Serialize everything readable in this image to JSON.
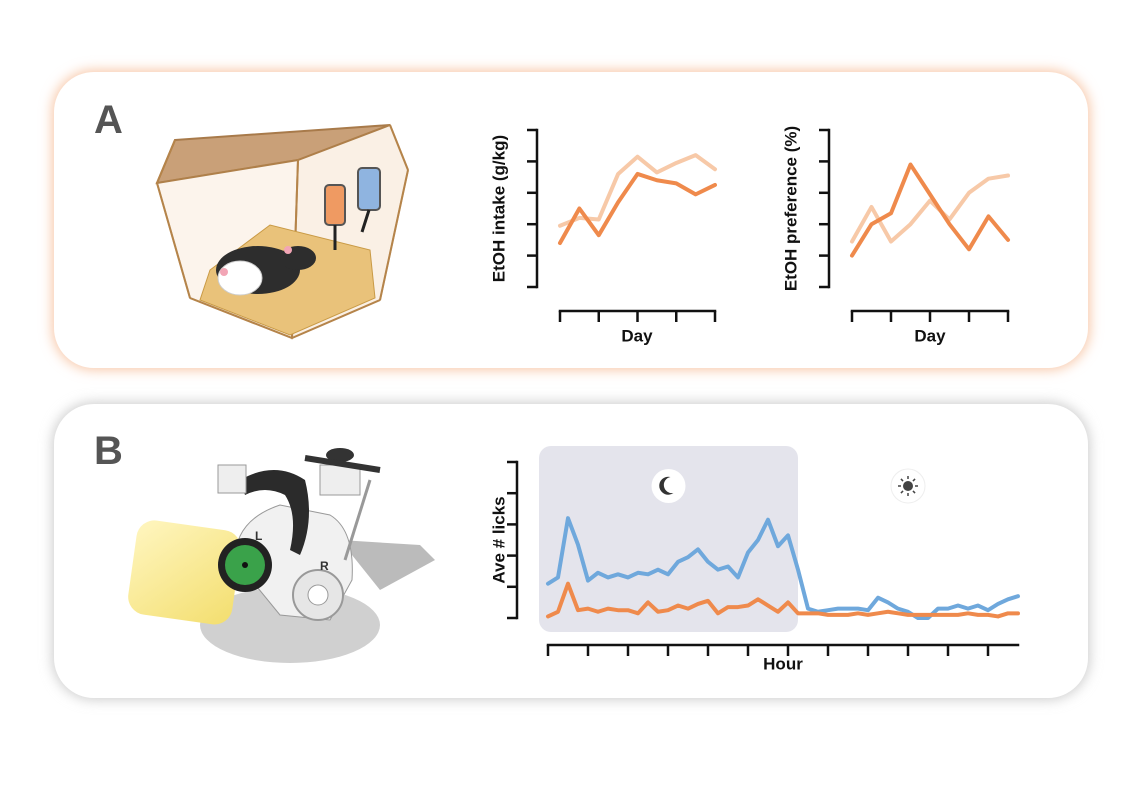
{
  "panels": [
    {
      "label": "A"
    },
    {
      "label": "B"
    }
  ],
  "chart_data": [
    {
      "type": "line",
      "ylabel": "EtOH intake (g/kg)",
      "xlabel": "Day",
      "x": [
        0,
        1,
        2,
        3,
        4,
        5,
        6,
        7,
        8
      ],
      "xlim": [
        0,
        8
      ],
      "xticks": [
        0,
        2,
        4,
        6,
        8
      ],
      "ylim": [
        0,
        5
      ],
      "yticks": [
        0,
        1,
        2,
        3,
        4,
        5
      ],
      "series": [
        {
          "color": "#f7c9a8",
          "values": [
            1.95,
            2.2,
            2.15,
            3.6,
            4.15,
            3.65,
            3.95,
            4.2,
            3.75
          ]
        },
        {
          "color": "#ef8a4c",
          "values": [
            1.4,
            2.5,
            1.65,
            2.7,
            3.6,
            3.4,
            3.3,
            2.95,
            3.25
          ]
        }
      ]
    },
    {
      "type": "line",
      "ylabel": "EtOH preference (%)",
      "xlabel": "Day",
      "x": [
        0,
        1,
        2,
        3,
        4,
        5,
        6,
        7,
        8
      ],
      "xlim": [
        0,
        8
      ],
      "xticks": [
        0,
        2,
        4,
        6,
        8
      ],
      "ylim": [
        0,
        5
      ],
      "yticks": [
        0,
        1,
        2,
        3,
        4,
        5
      ],
      "series": [
        {
          "color": "#f7c9a8",
          "values": [
            1.45,
            2.55,
            1.45,
            2.0,
            2.75,
            2.15,
            3.0,
            3.45,
            3.55
          ]
        },
        {
          "color": "#ef8a4c",
          "values": [
            1.0,
            2.0,
            2.35,
            3.9,
            2.95,
            2.0,
            1.2,
            2.25,
            1.5
          ]
        }
      ]
    },
    {
      "type": "line",
      "ylabel": "Ave # licks",
      "xlabel": "Hour",
      "x": [
        0,
        0.5,
        1,
        1.5,
        2,
        2.5,
        3,
        3.5,
        4,
        4.5,
        5,
        5.5,
        6,
        6.5,
        7,
        7.5,
        8,
        8.5,
        9,
        9.5,
        10,
        10.5,
        11,
        11.5,
        12,
        12.5,
        13,
        13.5,
        14,
        14.5,
        15,
        15.5,
        16,
        16.5,
        17,
        17.5,
        18,
        18.5,
        19,
        19.5,
        20,
        20.5,
        21,
        21.5,
        22,
        22.5,
        23,
        23.5
      ],
      "xlim": [
        0,
        23.5
      ],
      "xticks": [
        0,
        2,
        4,
        6,
        8,
        10,
        12,
        14,
        16,
        18,
        20,
        22
      ],
      "ylim": [
        0,
        5
      ],
      "yticks": [
        0,
        1,
        2,
        3,
        4,
        5
      ],
      "shaded": [
        0,
        12.5
      ],
      "series": [
        {
          "color": "#6fa8dc",
          "values": [
            1.1,
            1.3,
            3.2,
            2.35,
            1.2,
            1.45,
            1.3,
            1.4,
            1.3,
            1.45,
            1.4,
            1.55,
            1.4,
            1.8,
            1.95,
            2.2,
            1.8,
            1.55,
            1.65,
            1.3,
            2.1,
            2.5,
            3.15,
            2.3,
            2.65,
            1.55,
            0.3,
            0.2,
            0.25,
            0.3,
            0.3,
            0.3,
            0.25,
            0.65,
            0.5,
            0.3,
            0.2,
            0,
            0,
            0.3,
            0.3,
            0.4,
            0.3,
            0.4,
            0.25,
            0.45,
            0.6,
            0.7
          ]
        },
        {
          "color": "#ef8a4c",
          "values": [
            0.05,
            0.2,
            1.1,
            0.25,
            0.3,
            0.2,
            0.3,
            0.25,
            0.25,
            0.15,
            0.5,
            0.2,
            0.25,
            0.4,
            0.3,
            0.45,
            0.55,
            0.15,
            0.35,
            0.35,
            0.4,
            0.6,
            0.4,
            0.2,
            0.5,
            0.15,
            0.15,
            0.15,
            0.1,
            0.1,
            0.1,
            0.15,
            0.1,
            0.15,
            0.2,
            0.15,
            0.1,
            0.1,
            0.1,
            0.1,
            0.1,
            0.1,
            0.15,
            0.1,
            0.1,
            0.05,
            0.15,
            0.15
          ]
        }
      ]
    }
  ]
}
